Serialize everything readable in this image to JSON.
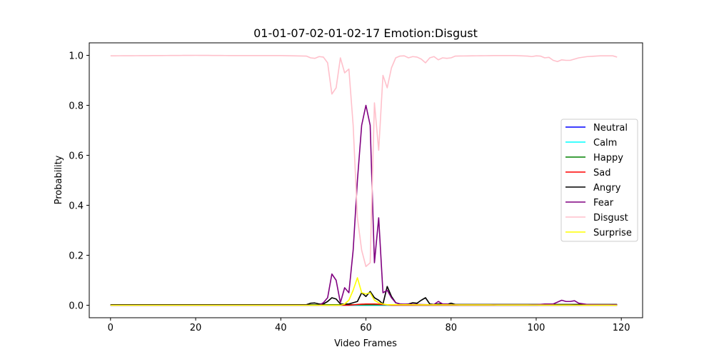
{
  "chart_data": {
    "type": "line",
    "title": "01-01-07-02-01-02-17 Emotion:Disgust",
    "xlabel": "Video Frames",
    "ylabel": "Probability",
    "xlim": [
      -5,
      125
    ],
    "ylim": [
      -0.05,
      1.05
    ],
    "xticks": [
      0,
      20,
      40,
      60,
      80,
      100,
      120
    ],
    "yticks": [
      0.0,
      0.2,
      0.4,
      0.6,
      0.8,
      1.0
    ],
    "xtick_labels": [
      "0",
      "20",
      "40",
      "60",
      "80",
      "100",
      "120"
    ],
    "ytick_labels": [
      "0.0",
      "0.2",
      "0.4",
      "0.6",
      "0.8",
      "1.0"
    ],
    "legend_position": "center-right",
    "x_range": [
      0,
      119
    ],
    "series": [
      {
        "name": "Neutral",
        "color": "#0000ff",
        "values": [
          [
            0,
            0
          ],
          [
            119,
            0
          ]
        ]
      },
      {
        "name": "Calm",
        "color": "#00ffff",
        "values": [
          [
            0,
            0
          ],
          [
            119,
            0
          ]
        ]
      },
      {
        "name": "Happy",
        "color": "#008000",
        "values": [
          [
            0,
            0.002
          ],
          [
            119,
            0.002
          ]
        ]
      },
      {
        "name": "Sad",
        "color": "#ff0000",
        "values": [
          [
            0,
            0
          ],
          [
            56,
            0
          ],
          [
            58,
            0.003
          ],
          [
            60,
            0.005
          ],
          [
            62,
            0.005
          ],
          [
            64,
            0.003
          ],
          [
            66,
            0
          ],
          [
            119,
            0
          ]
        ]
      },
      {
        "name": "Angry",
        "color": "#000000",
        "values": [
          [
            0,
            0.002
          ],
          [
            46,
            0.002
          ],
          [
            47,
            0.008
          ],
          [
            48,
            0.009
          ],
          [
            49,
            0.005
          ],
          [
            50,
            0.005
          ],
          [
            51,
            0.015
          ],
          [
            52,
            0.03
          ],
          [
            53,
            0.025
          ],
          [
            54,
            0.005
          ],
          [
            55,
            0.005
          ],
          [
            56,
            0.005
          ],
          [
            57,
            0.01
          ],
          [
            58,
            0.015
          ],
          [
            59,
            0.05
          ],
          [
            60,
            0.035
          ],
          [
            61,
            0.055
          ],
          [
            62,
            0.03
          ],
          [
            63,
            0.02
          ],
          [
            64,
            0.005
          ],
          [
            65,
            0.075
          ],
          [
            66,
            0.035
          ],
          [
            67,
            0.01
          ],
          [
            68,
            0.005
          ],
          [
            69,
            0.003
          ],
          [
            70,
            0.005
          ],
          [
            71,
            0.01
          ],
          [
            72,
            0.008
          ],
          [
            73,
            0.02
          ],
          [
            74,
            0.03
          ],
          [
            75,
            0.005
          ],
          [
            76,
            0.003
          ],
          [
            77,
            0.005
          ],
          [
            78,
            0.005
          ],
          [
            79,
            0.003
          ],
          [
            80,
            0.008
          ],
          [
            81,
            0.003
          ],
          [
            119,
            0.003
          ]
        ]
      },
      {
        "name": "Fear",
        "color": "#800080",
        "values": [
          [
            0,
            0
          ],
          [
            49,
            0
          ],
          [
            50,
            0.01
          ],
          [
            51,
            0.03
          ],
          [
            52,
            0.125
          ],
          [
            53,
            0.1
          ],
          [
            54,
            0.01
          ],
          [
            55,
            0.07
          ],
          [
            56,
            0.05
          ],
          [
            57,
            0.22
          ],
          [
            58,
            0.5
          ],
          [
            59,
            0.72
          ],
          [
            60,
            0.8
          ],
          [
            61,
            0.72
          ],
          [
            62,
            0.17
          ],
          [
            63,
            0.35
          ],
          [
            64,
            0.05
          ],
          [
            65,
            0.06
          ],
          [
            66,
            0.03
          ],
          [
            67,
            0.01
          ],
          [
            68,
            0.005
          ],
          [
            75,
            0.002
          ],
          [
            76,
            0.003
          ],
          [
            77,
            0.015
          ],
          [
            78,
            0.005
          ],
          [
            79,
            0.005
          ],
          [
            80,
            0.002
          ],
          [
            100,
            0.002
          ],
          [
            102,
            0.005
          ],
          [
            104,
            0.005
          ],
          [
            106,
            0.02
          ],
          [
            107,
            0.015
          ],
          [
            108,
            0.015
          ],
          [
            109,
            0.018
          ],
          [
            110,
            0.008
          ],
          [
            112,
            0.003
          ],
          [
            115,
            0.002
          ],
          [
            119,
            0.002
          ]
        ]
      },
      {
        "name": "Disgust",
        "color": "#ffc0cb",
        "values": [
          [
            0,
            0.998
          ],
          [
            10,
            0.999
          ],
          [
            20,
            1.0
          ],
          [
            30,
            0.999
          ],
          [
            40,
            0.999
          ],
          [
            46,
            0.997
          ],
          [
            47,
            0.99
          ],
          [
            48,
            0.988
          ],
          [
            49,
            0.995
          ],
          [
            50,
            0.993
          ],
          [
            51,
            0.97
          ],
          [
            52,
            0.845
          ],
          [
            53,
            0.87
          ],
          [
            54,
            0.99
          ],
          [
            55,
            0.93
          ],
          [
            56,
            0.945
          ],
          [
            57,
            0.72
          ],
          [
            58,
            0.35
          ],
          [
            59,
            0.22
          ],
          [
            60,
            0.155
          ],
          [
            61,
            0.17
          ],
          [
            62,
            0.81
          ],
          [
            63,
            0.62
          ],
          [
            64,
            0.92
          ],
          [
            65,
            0.87
          ],
          [
            66,
            0.95
          ],
          [
            67,
            0.99
          ],
          [
            68,
            0.997
          ],
          [
            69,
            0.998
          ],
          [
            70,
            0.99
          ],
          [
            71,
            0.995
          ],
          [
            72,
            0.993
          ],
          [
            73,
            0.985
          ],
          [
            74,
            0.97
          ],
          [
            75,
            0.99
          ],
          [
            76,
            0.995
          ],
          [
            77,
            0.982
          ],
          [
            78,
            0.99
          ],
          [
            79,
            0.988
          ],
          [
            80,
            0.99
          ],
          [
            81,
            0.997
          ],
          [
            85,
            0.998
          ],
          [
            90,
            0.999
          ],
          [
            95,
            0.999
          ],
          [
            98,
            0.997
          ],
          [
            99,
            0.995
          ],
          [
            100,
            0.998
          ],
          [
            101,
            0.997
          ],
          [
            102,
            0.99
          ],
          [
            103,
            0.992
          ],
          [
            104,
            0.98
          ],
          [
            105,
            0.975
          ],
          [
            106,
            0.982
          ],
          [
            107,
            0.98
          ],
          [
            108,
            0.98
          ],
          [
            109,
            0.985
          ],
          [
            110,
            0.99
          ],
          [
            112,
            0.995
          ],
          [
            115,
            0.998
          ],
          [
            118,
            0.998
          ],
          [
            119,
            0.993
          ]
        ]
      },
      {
        "name": "Surprise",
        "color": "#ffff00",
        "values": [
          [
            0,
            0
          ],
          [
            54,
            0
          ],
          [
            55,
            0.005
          ],
          [
            56,
            0.02
          ],
          [
            57,
            0.06
          ],
          [
            58,
            0.11
          ],
          [
            59,
            0.05
          ],
          [
            60,
            0.045
          ],
          [
            61,
            0.05
          ],
          [
            62,
            0.02
          ],
          [
            63,
            0.01
          ],
          [
            64,
            0.005
          ],
          [
            65,
            0.002
          ],
          [
            119,
            0
          ]
        ]
      }
    ]
  }
}
